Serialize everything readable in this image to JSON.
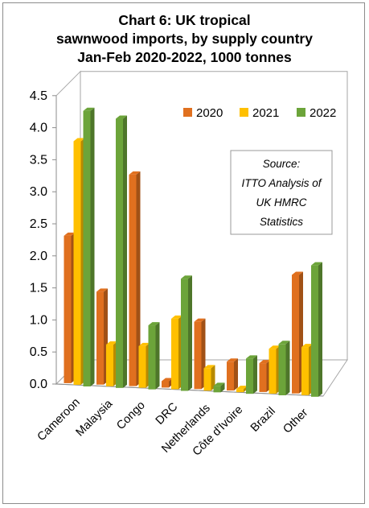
{
  "title_lines": [
    "Chart 6: UK tropical",
    "sawnwood imports, by supply country",
    "Jan-Feb 2020-2022, 1000 tonnes"
  ],
  "source_lines": [
    "Source:",
    "ITTO Analysis of",
    "UK HMRC",
    "Statistics"
  ],
  "colors": {
    "2020": "#E0701F",
    "2021": "#FFC000",
    "2022": "#6CA43A"
  },
  "chart_data": {
    "type": "bar",
    "variant": "3d-clustered-column",
    "title": "Chart 6: UK tropical sawnwood imports, by supply country Jan-Feb 2020-2022, 1000 tonnes",
    "categories": [
      "Cameroon",
      "Malaysia",
      "Congo",
      "DRC",
      "Netherlands",
      "Côte d'Ivoire",
      "Brazil",
      "Other"
    ],
    "series": [
      {
        "name": "2020",
        "values": [
          2.3,
          1.45,
          3.3,
          0.1,
          1.05,
          0.45,
          0.45,
          1.85
        ]
      },
      {
        "name": "2021",
        "values": [
          3.8,
          0.65,
          0.65,
          1.1,
          0.35,
          0.05,
          0.7,
          0.75
        ]
      },
      {
        "name": "2022",
        "values": [
          4.3,
          4.2,
          1.0,
          1.75,
          0.1,
          0.55,
          0.8,
          2.05
        ]
      }
    ],
    "ylim": [
      0,
      4.5
    ],
    "yticks": [
      "0.0",
      "0.5",
      "1.0",
      "1.5",
      "2.0",
      "2.5",
      "3.0",
      "3.5",
      "4.0",
      "4.5"
    ],
    "legend_position": "top-right",
    "grid": false
  }
}
